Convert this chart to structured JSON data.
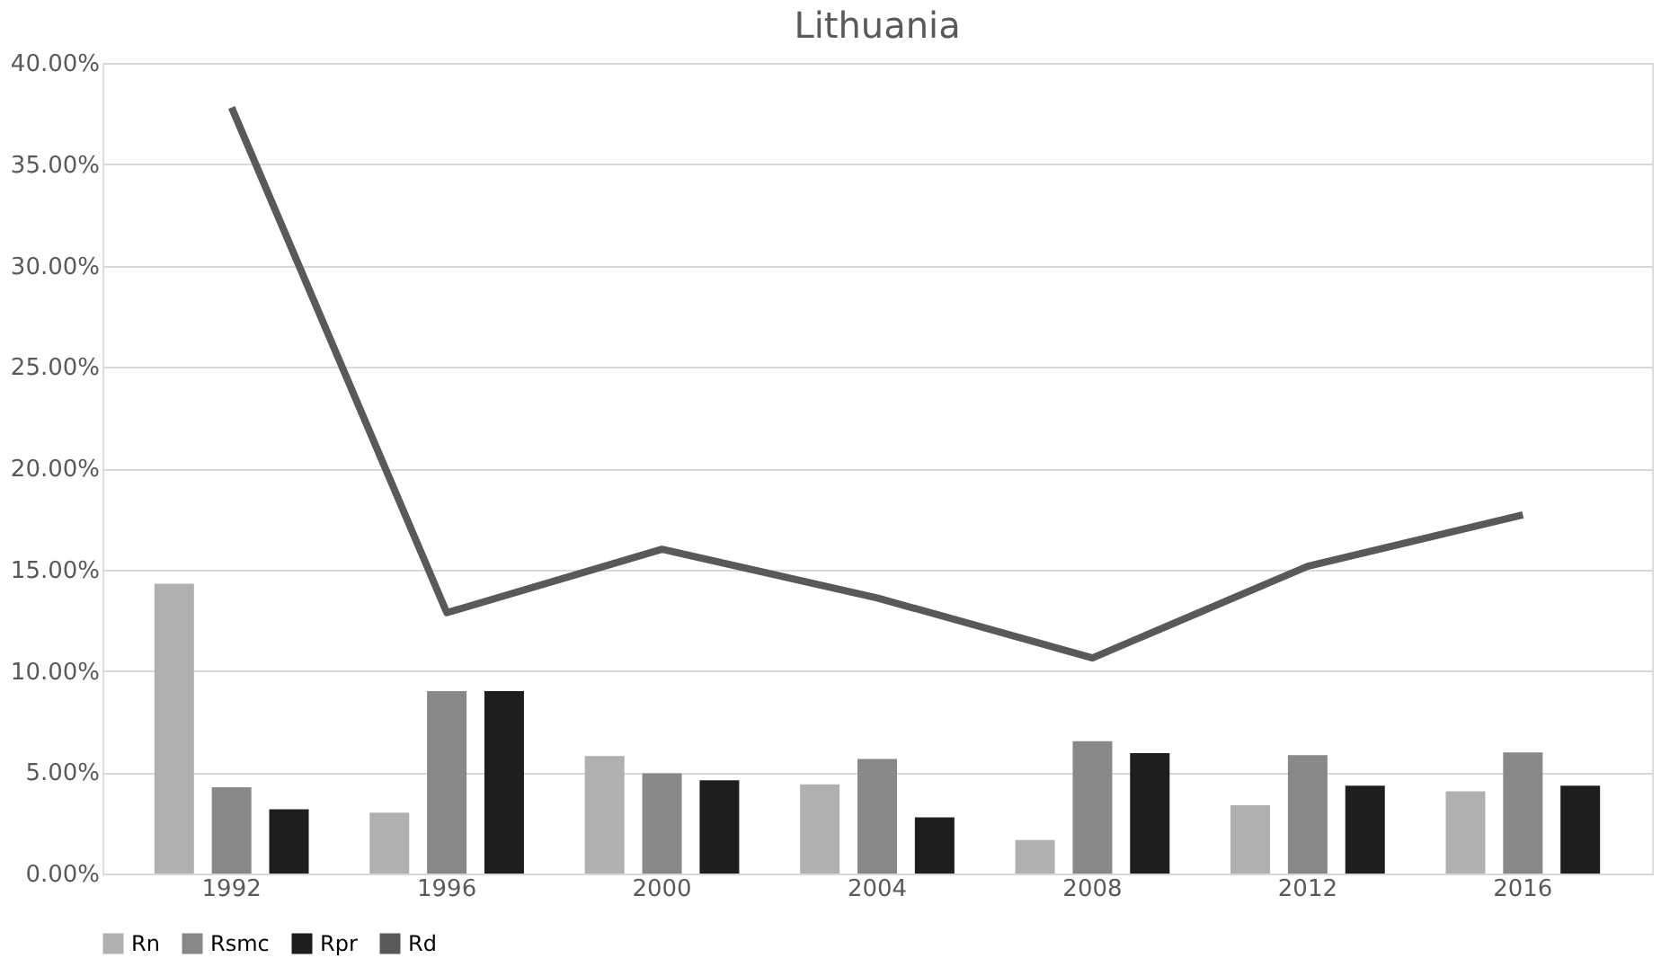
{
  "chart_data": {
    "type": "bar",
    "title": "Lithuania",
    "categories": [
      "1992",
      "1996",
      "2000",
      "2004",
      "2008",
      "2012",
      "2016"
    ],
    "series": [
      {
        "name": "Rn",
        "color": "#b0b0b0",
        "values": [
          14.3,
          3.0,
          5.8,
          4.4,
          1.65,
          3.37,
          4.06
        ]
      },
      {
        "name": "Rsmc",
        "color": "#888888",
        "values": [
          4.26,
          9.0,
          4.95,
          5.65,
          6.53,
          5.84,
          5.98
        ]
      },
      {
        "name": "Rpr",
        "color": "#1e1e1e",
        "values": [
          3.17,
          9.0,
          4.6,
          2.77,
          5.94,
          4.33,
          4.33
        ]
      },
      {
        "name": "Rd",
        "color": "#595959",
        "type": "line",
        "values": [
          37.8,
          12.87,
          16.0,
          13.6,
          10.64,
          15.16,
          17.7
        ]
      }
    ],
    "ylim": [
      0,
      40
    ],
    "yticks": [
      {
        "value": 0,
        "label": "0.00%"
      },
      {
        "value": 5,
        "label": "5.00%"
      },
      {
        "value": 10,
        "label": "10.00%"
      },
      {
        "value": 15,
        "label": "15.00%"
      },
      {
        "value": 20,
        "label": "20.00%"
      },
      {
        "value": 25,
        "label": "25.00%"
      },
      {
        "value": 30,
        "label": "30.00%"
      },
      {
        "value": 35,
        "label": "35.00%"
      },
      {
        "value": 40,
        "label": "40.00%"
      }
    ],
    "grid": "y",
    "legend": "bottom",
    "line_style": "solid",
    "marker": "none"
  }
}
